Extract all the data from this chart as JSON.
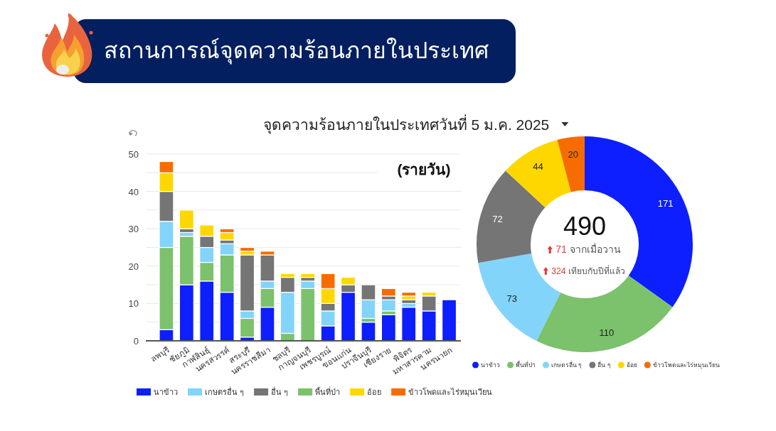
{
  "chart_data": [
    {
      "type": "bar",
      "title": "สถานการณ์จุดความร้อนภายในประเทศ",
      "subtitle": "จุดความร้อนภายในประเทศวันที่ 5 ม.ค. 2025",
      "categories": [
        "ลพบุรี",
        "ชัยภูมิ",
        "กาฬสินธุ์",
        "นครสวรรค์",
        "สระบุรี",
        "นครราชสีมา",
        "ชลบุรี",
        "กาญจนบุรี",
        "เพชรบูรณ์",
        "ขอนแก่น",
        "ปราจีนบุรี",
        "เชียงราย",
        "พิจิตร",
        "มหาสารคาม",
        "นครนายก"
      ],
      "series": [
        {
          "name": "นาข้าว",
          "color": "#0d1eff",
          "values": [
            3,
            15,
            16,
            13,
            1,
            9,
            null,
            null,
            4,
            13,
            5,
            7,
            9,
            8,
            11
          ]
        },
        {
          "name": "พื้นที่ป่า",
          "color": "#7cc16c",
          "values": [
            22,
            13,
            5,
            10,
            5,
            5,
            2,
            14,
            null,
            null,
            1,
            1,
            null,
            null,
            null
          ]
        },
        {
          "name": "เกษตรอื่น ๆ",
          "color": "#82d4fa",
          "values": [
            7,
            1,
            4,
            3,
            2,
            2,
            11,
            2,
            4,
            null,
            5,
            3,
            1,
            null,
            null
          ]
        },
        {
          "name": "อื่น ๆ",
          "color": "#757575",
          "values": [
            8,
            1,
            3,
            1,
            15,
            7,
            4,
            1,
            2,
            2,
            4,
            1,
            1,
            4,
            null
          ]
        },
        {
          "name": "อ้อย",
          "color": "#ffd700",
          "values": [
            5,
            5,
            3,
            2,
            1,
            null,
            1,
            1,
            4,
            2,
            null,
            null,
            1,
            1,
            null
          ]
        },
        {
          "name": "ข้าวโพดและไร่หมุนเวียน",
          "color": "#f76c00",
          "values": [
            3,
            null,
            null,
            1,
            1,
            1,
            null,
            null,
            4,
            null,
            null,
            2,
            1,
            null,
            null
          ]
        }
      ],
      "stacked": true,
      "ylim": [
        0,
        50
      ],
      "yticks": [
        0,
        {
          "value": 5,
          "label": null
        },
        10,
        {
          "value": 15,
          "label": null
        },
        20,
        {
          "value": 25,
          "label": null
        },
        30,
        {
          "value": 35,
          "label": null
        },
        40,
        {
          "value": 45,
          "label": null
        },
        50
      ],
      "grid": "y",
      "legend": "bottom",
      "annotations": [
        "(รายวัน)"
      ]
    },
    {
      "type": "donut",
      "categories": [
        "นาข้าว",
        "พื้นที่ป่า",
        "เกษตรอื่น ๆ",
        "อื่น ๆ",
        "อ้อย",
        "ข้าวโพดและไร่หมุนเวียน"
      ],
      "values": [
        171,
        110,
        73,
        72,
        44,
        20
      ],
      "colors": [
        "#0d1eff",
        "#7cc16c",
        "#82d4fa",
        "#757575",
        "#ffd700",
        "#f76c00"
      ],
      "data_labels": true,
      "legend": "bottom",
      "annotations": [
        "490",
        "71 จากเมื่อวาน",
        "324 เทียบกับปีที่แล้ว"
      ]
    }
  ]
}
